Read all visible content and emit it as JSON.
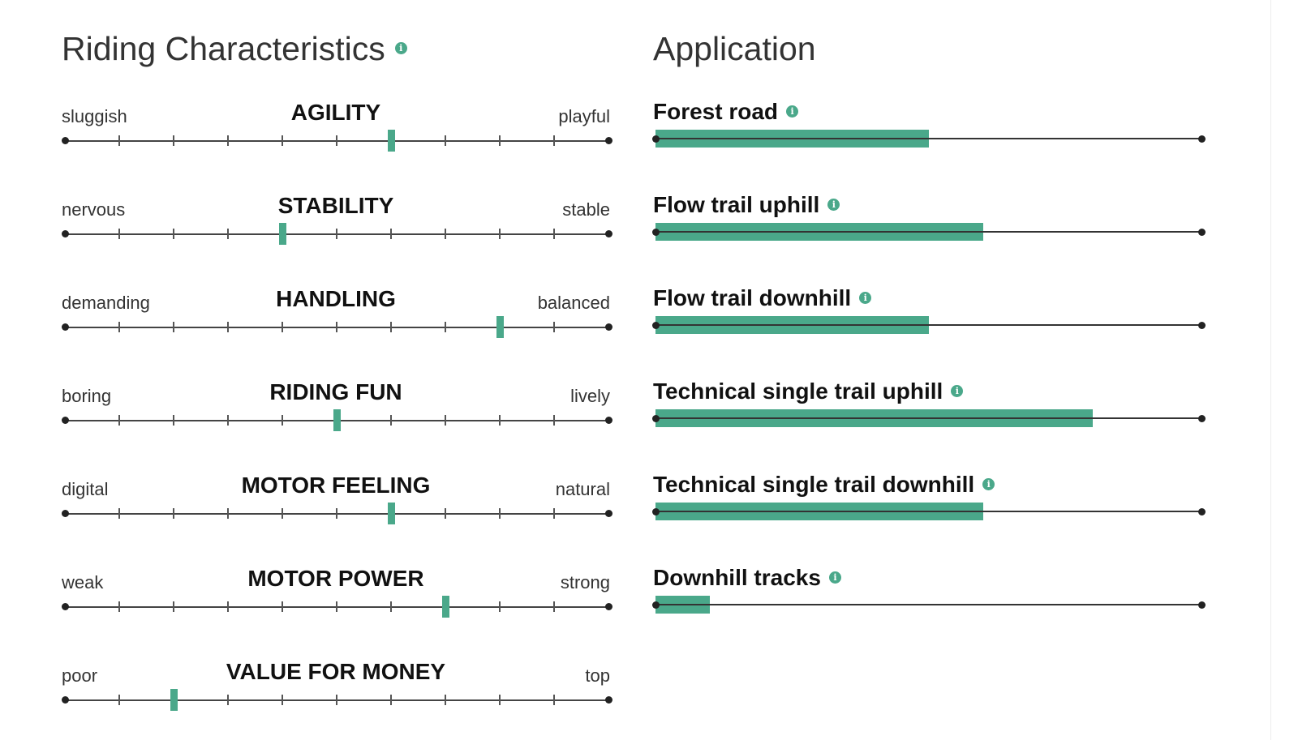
{
  "riding": {
    "title": "Riding Characteristics",
    "info_icon": "info-icon",
    "accent_color": "#4aa88a",
    "scale_steps": 10,
    "items": [
      {
        "name": "AGILITY",
        "left": "sluggish",
        "right": "playful",
        "value": 6
      },
      {
        "name": "STABILITY",
        "left": "nervous",
        "right": "stable",
        "value": 4
      },
      {
        "name": "HANDLING",
        "left": "demanding",
        "right": "balanced",
        "value": 8
      },
      {
        "name": "RIDING FUN",
        "left": "boring",
        "right": "lively",
        "value": 5
      },
      {
        "name": "MOTOR FEELING",
        "left": "digital",
        "right": "natural",
        "value": 6
      },
      {
        "name": "MOTOR POWER",
        "left": "weak",
        "right": "strong",
        "value": 7
      },
      {
        "name": "VALUE FOR MONEY",
        "left": "poor",
        "right": "top",
        "value": 2
      }
    ]
  },
  "application": {
    "title": "Application",
    "info_icon": "info-icon",
    "accent_color": "#4aa88a",
    "items": [
      {
        "label": "Forest road",
        "fraction": 0.5
      },
      {
        "label": "Flow trail uphill",
        "fraction": 0.6
      },
      {
        "label": "Flow trail downhill",
        "fraction": 0.5
      },
      {
        "label": "Technical single trail uphill",
        "fraction": 0.8
      },
      {
        "label": "Technical single trail downhill",
        "fraction": 0.6
      },
      {
        "label": "Downhill tracks",
        "fraction": 0.1
      }
    ]
  }
}
